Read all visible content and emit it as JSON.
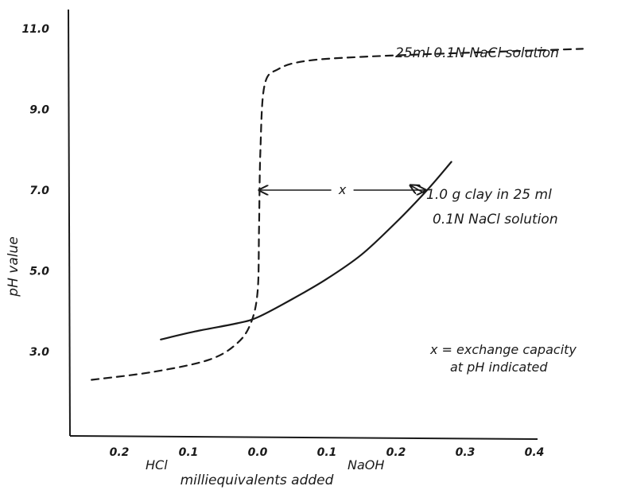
{
  "chart_data": {
    "type": "line",
    "title": "",
    "ylabel": "pH value",
    "xlabel": "milliequivalents added",
    "x_side_labels": {
      "left": "HCl",
      "right": "NaOH"
    },
    "x_ticks": [
      {
        "value": -0.2,
        "label": "0.2"
      },
      {
        "value": -0.1,
        "label": "0.1"
      },
      {
        "value": 0.0,
        "label": "0.0"
      },
      {
        "value": 0.1,
        "label": "0.1"
      },
      {
        "value": 0.2,
        "label": "0.2"
      },
      {
        "value": 0.3,
        "label": "0.3"
      },
      {
        "value": 0.4,
        "label": "0.4"
      }
    ],
    "y_ticks": [
      {
        "value": 3.0,
        "label": "3.0"
      },
      {
        "value": 5.0,
        "label": "5.0"
      },
      {
        "value": 7.0,
        "label": "7.0"
      },
      {
        "value": 9.0,
        "label": "9.0"
      },
      {
        "value": 11.0,
        "label": "11.0"
      }
    ],
    "xlim": [
      -0.3,
      0.5
    ],
    "ylim": [
      1.0,
      11.4
    ],
    "grid": false,
    "series": [
      {
        "name": "25ml 0.1N NaCl solution",
        "style": "dashed",
        "points": [
          [
            -0.24,
            2.3
          ],
          [
            -0.15,
            2.5
          ],
          [
            -0.07,
            2.8
          ],
          [
            -0.03,
            3.2
          ],
          [
            -0.01,
            3.7
          ],
          [
            0.0,
            4.5
          ],
          [
            0.002,
            6.0
          ],
          [
            0.004,
            8.0
          ],
          [
            0.01,
            9.6
          ],
          [
            0.03,
            10.0
          ],
          [
            0.07,
            10.2
          ],
          [
            0.15,
            10.3
          ],
          [
            0.3,
            10.4
          ],
          [
            0.47,
            10.5
          ]
        ]
      },
      {
        "name": "1.0 g clay in 25 ml 0.1N NaCl solution",
        "style": "solid",
        "points": [
          [
            -0.14,
            3.3
          ],
          [
            -0.09,
            3.5
          ],
          [
            -0.03,
            3.7
          ],
          [
            0.0,
            3.85
          ],
          [
            0.05,
            4.3
          ],
          [
            0.1,
            4.8
          ],
          [
            0.15,
            5.4
          ],
          [
            0.2,
            6.2
          ],
          [
            0.245,
            7.0
          ],
          [
            0.28,
            7.7
          ]
        ]
      }
    ],
    "annotations": {
      "series_label_top": "25ml 0.1N NaCl solution",
      "series_label_clay_line1": "1.0 g clay in 25 ml",
      "series_label_clay_line2": "0.1N NaCl solution",
      "arrow_marker": "x",
      "arrow_y": 7.0,
      "arrow_x_from": 0.0,
      "arrow_x_to": 0.245,
      "legend_line1": "x = exchange capacity",
      "legend_line2": "at pH indicated"
    }
  }
}
